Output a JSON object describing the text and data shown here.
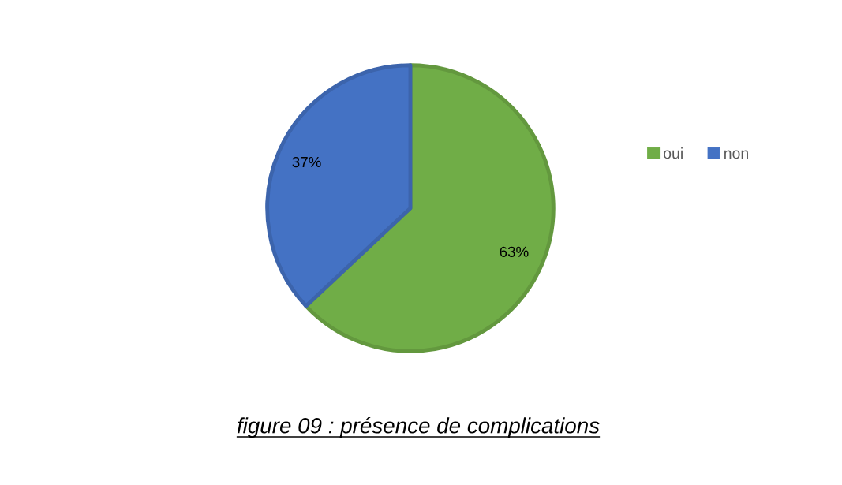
{
  "chart_data": {
    "type": "pie",
    "title": "figure 09 : présence de complications",
    "categories": [
      "oui",
      "non"
    ],
    "values": [
      63,
      37
    ],
    "colors": [
      "#70ad47",
      "#4472c4"
    ],
    "value_labels": [
      "63%",
      "37%"
    ],
    "legend": "right"
  }
}
